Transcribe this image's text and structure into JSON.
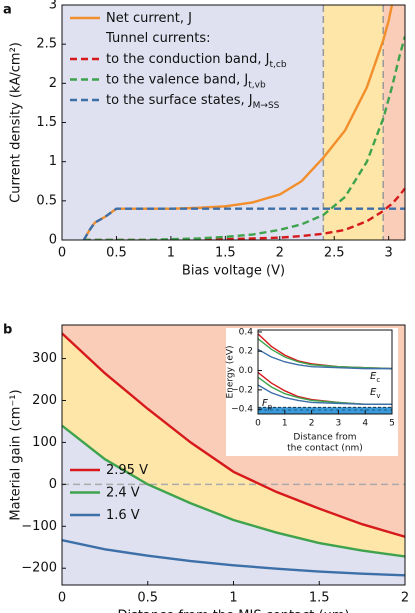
{
  "chart_data": [
    {
      "type": "line",
      "panel_label": "a",
      "xlabel": "Bias voltage (V)",
      "ylabel": "Current density (kA/cm²)",
      "x": [
        0.2,
        0.25,
        0.3,
        0.4,
        0.5,
        0.75,
        1.0,
        1.25,
        1.5,
        1.75,
        2.0,
        2.2,
        2.4,
        2.6,
        2.8,
        2.95,
        3.0,
        3.03,
        3.1,
        3.15
      ],
      "xlim": [
        0,
        3.15
      ],
      "ylim": [
        0,
        3
      ],
      "xticks": [
        0,
        0.5,
        1,
        1.5,
        2,
        2.5,
        3
      ],
      "yticks": [
        0,
        0.5,
        1,
        1.5,
        2,
        2.5,
        3
      ],
      "legend_header": "Tunnel currents:",
      "bands": [
        {
          "from": 0,
          "to": 2.4,
          "color": "#dfe1f0"
        },
        {
          "from": 2.4,
          "to": 2.95,
          "color": "#fde6a8"
        },
        {
          "from": 2.95,
          "to": 3.15,
          "color": "#f9cdb8"
        }
      ],
      "series": [
        {
          "name": "Net current, J",
          "color": "#f28e2b",
          "dashed": false,
          "values": [
            0,
            0.12,
            0.22,
            0.3,
            0.4,
            0.4,
            0.4,
            0.41,
            0.43,
            0.48,
            0.58,
            0.75,
            1.05,
            1.4,
            1.95,
            2.55,
            2.8,
            3.0,
            null,
            null
          ]
        },
        {
          "name": "to the conduction band, J",
          "name_subscript": "t,cb",
          "color": "#d7191c",
          "dashed": true,
          "values": [
            0,
            0,
            0,
            0,
            0,
            0,
            0,
            0.01,
            0.01,
            0.02,
            0.03,
            0.05,
            0.08,
            0.13,
            0.24,
            0.37,
            0.43,
            0.46,
            0.57,
            0.66
          ]
        },
        {
          "name": "to the valence band, J",
          "name_subscript": "t,vb",
          "color": "#3fa34d",
          "dashed": true,
          "values": [
            0,
            0,
            0,
            0,
            0,
            0,
            0.01,
            0.02,
            0.04,
            0.07,
            0.13,
            0.2,
            0.32,
            0.55,
            1.0,
            1.55,
            1.8,
            1.95,
            2.35,
            2.6
          ]
        },
        {
          "name": "to the surface states, J",
          "name_subscript": "M→SS",
          "color": "#3d6fa8",
          "dashed": true,
          "values": [
            0,
            0.12,
            0.22,
            0.3,
            0.4,
            0.4,
            0.4,
            0.4,
            0.4,
            0.4,
            0.4,
            0.4,
            0.4,
            0.4,
            0.4,
            0.4,
            0.4,
            0.4,
            0.4,
            0.4
          ]
        }
      ]
    },
    {
      "type": "line",
      "panel_label": "b",
      "xlabel": "Distance from the MIS contact (μm)",
      "ylabel": "Material gain (cm⁻¹)",
      "x": [
        0,
        0.25,
        0.5,
        0.75,
        1,
        1.25,
        1.5,
        1.75,
        2
      ],
      "xlim": [
        0,
        2
      ],
      "ylim": [
        -240,
        380
      ],
      "xticks": [
        0,
        0.5,
        1,
        1.5,
        2
      ],
      "yticks": [
        {
          "value": -200,
          "label": "−200"
        },
        {
          "value": -100,
          "label": "−100"
        },
        0,
        100,
        200,
        300
      ],
      "hline": 0,
      "region_colors": [
        "#dfe1f0",
        "#fde6a8",
        "#f9cdb8"
      ],
      "series": [
        {
          "name": "2.95 V",
          "color": "#d7191c",
          "values": [
            360,
            265,
            180,
            100,
            30,
            -18,
            -58,
            -95,
            -125
          ]
        },
        {
          "name": "2.4 V",
          "color": "#3fa34d",
          "values": [
            140,
            60,
            0,
            -45,
            -85,
            -115,
            -140,
            -158,
            -172
          ]
        },
        {
          "name": "1.6 V",
          "color": "#3d6fa8",
          "values": [
            -133,
            -155,
            -170,
            -183,
            -193,
            -201,
            -208,
            -213,
            -217
          ]
        }
      ]
    },
    {
      "type": "line",
      "xlabel": [
        "Distance from",
        "the contact (nm)"
      ],
      "ylabel": "Energy (eV)",
      "x": [
        0,
        0.5,
        1,
        1.5,
        2,
        3,
        4,
        5
      ],
      "xlim": [
        0,
        5
      ],
      "ylim": [
        -0.45,
        0.42
      ],
      "xticks": [
        0,
        1,
        2,
        3,
        4,
        5
      ],
      "yticks": [
        {
          "value": -0.4,
          "label": "−0.4"
        },
        {
          "value": -0.2,
          "label": "−0.2"
        },
        {
          "value": 0,
          "label": "0.0"
        },
        0.2,
        0.4
      ],
      "fermi_level": -0.38,
      "fermi_color": "#3a9ad9",
      "annotations": [
        {
          "text": "E",
          "sub": "c"
        },
        {
          "text": "E",
          "sub": "v"
        },
        {
          "text": "F",
          "sub": "p"
        }
      ],
      "series": [
        {
          "color": "#d7191c",
          "values": [
            0.38,
            0.25,
            0.16,
            0.1,
            0.07,
            0.04,
            0.03,
            0.02
          ]
        },
        {
          "color": "#3fa34d",
          "values": [
            0.33,
            0.22,
            0.14,
            0.09,
            0.06,
            0.04,
            0.03,
            0.02
          ]
        },
        {
          "color": "#3d6fa8",
          "values": [
            0.22,
            0.14,
            0.09,
            0.06,
            0.04,
            0.03,
            0.02,
            0.02
          ]
        },
        {
          "color": "#d7191c",
          "values": [
            -0.02,
            -0.13,
            -0.21,
            -0.27,
            -0.3,
            -0.33,
            -0.35,
            -0.35
          ]
        },
        {
          "color": "#3fa34d",
          "values": [
            -0.07,
            -0.17,
            -0.24,
            -0.28,
            -0.31,
            -0.33,
            -0.35,
            -0.35
          ]
        },
        {
          "color": "#3d6fa8",
          "values": [
            -0.15,
            -0.23,
            -0.28,
            -0.31,
            -0.33,
            -0.34,
            -0.35,
            -0.35
          ]
        }
      ]
    }
  ]
}
